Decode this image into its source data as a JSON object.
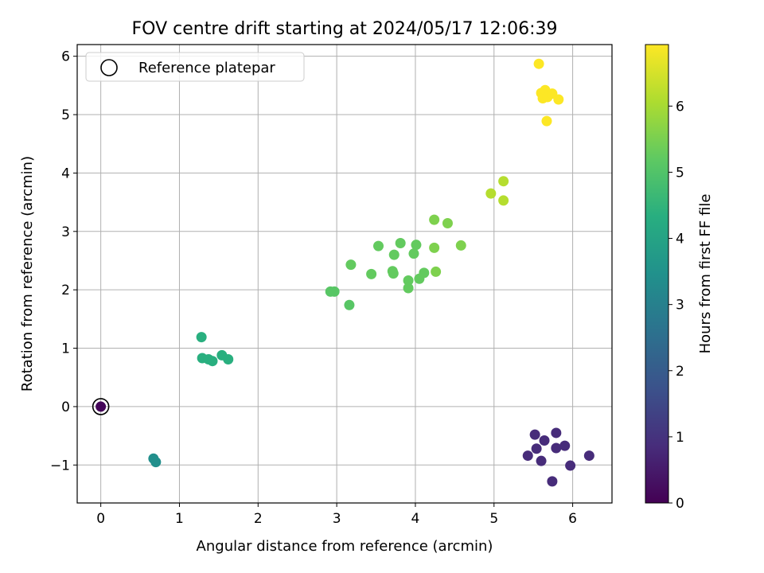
{
  "chart_data": {
    "type": "scatter",
    "title": "FOV centre drift starting at 2024/05/17 12:06:39",
    "xlabel": "Angular distance from reference (arcmin)",
    "ylabel": "Rotation from reference (arcmin)",
    "colorbar_label": "Hours from first FF file",
    "xlim": [
      -0.3,
      6.5
    ],
    "ylim": [
      -1.65,
      6.2
    ],
    "clim": [
      0,
      6.93
    ],
    "xticks": [
      0,
      1,
      2,
      3,
      4,
      5,
      6
    ],
    "xtick_labels": [
      "0",
      "1",
      "2",
      "3",
      "4",
      "5",
      "6"
    ],
    "yticks": [
      -1,
      0,
      1,
      2,
      3,
      4,
      5,
      6
    ],
    "ytick_labels": [
      "−1",
      "0",
      "1",
      "2",
      "3",
      "4",
      "5",
      "6"
    ],
    "cbar_ticks": [
      0,
      1,
      2,
      3,
      4,
      5,
      6
    ],
    "cbar_tick_labels": [
      "0",
      "1",
      "2",
      "3",
      "4",
      "5",
      "6"
    ],
    "grid": true,
    "colormap": "viridis",
    "legend": {
      "position": "upper-left",
      "entries": [
        "Reference platepar"
      ]
    },
    "reference_point": {
      "x": 0,
      "y": 0
    },
    "points": [
      {
        "x": 0.0,
        "y": 0.0,
        "c": 0.1
      },
      {
        "x": 5.52,
        "y": -0.48,
        "c": 0.85
      },
      {
        "x": 5.64,
        "y": -0.58,
        "c": 0.85
      },
      {
        "x": 5.79,
        "y": -0.45,
        "c": 0.85
      },
      {
        "x": 5.43,
        "y": -0.84,
        "c": 0.85
      },
      {
        "x": 5.54,
        "y": -0.72,
        "c": 0.85
      },
      {
        "x": 5.6,
        "y": -0.93,
        "c": 0.85
      },
      {
        "x": 5.79,
        "y": -0.71,
        "c": 0.85
      },
      {
        "x": 5.9,
        "y": -0.67,
        "c": 0.85
      },
      {
        "x": 5.97,
        "y": -1.01,
        "c": 0.85
      },
      {
        "x": 6.21,
        "y": -0.84,
        "c": 0.85
      },
      {
        "x": 5.74,
        "y": -1.28,
        "c": 0.85
      },
      {
        "x": 0.67,
        "y": -0.89,
        "c": 3.4
      },
      {
        "x": 0.7,
        "y": -0.95,
        "c": 3.4
      },
      {
        "x": 1.28,
        "y": 1.19,
        "c": 4.35
      },
      {
        "x": 1.29,
        "y": 0.83,
        "c": 4.35
      },
      {
        "x": 1.37,
        "y": 0.81,
        "c": 4.35
      },
      {
        "x": 1.42,
        "y": 0.78,
        "c": 4.35
      },
      {
        "x": 1.54,
        "y": 0.88,
        "c": 4.35
      },
      {
        "x": 1.62,
        "y": 0.81,
        "c": 4.35
      },
      {
        "x": 2.92,
        "y": 1.97,
        "c": 5.1
      },
      {
        "x": 2.97,
        "y": 1.97,
        "c": 5.1
      },
      {
        "x": 3.16,
        "y": 1.74,
        "c": 5.1
      },
      {
        "x": 3.18,
        "y": 2.43,
        "c": 5.25
      },
      {
        "x": 3.44,
        "y": 2.27,
        "c": 5.25
      },
      {
        "x": 3.53,
        "y": 2.75,
        "c": 5.25
      },
      {
        "x": 3.71,
        "y": 2.32,
        "c": 5.25
      },
      {
        "x": 3.72,
        "y": 2.28,
        "c": 5.25
      },
      {
        "x": 3.73,
        "y": 2.6,
        "c": 5.25
      },
      {
        "x": 3.81,
        "y": 2.8,
        "c": 5.25
      },
      {
        "x": 3.91,
        "y": 2.16,
        "c": 5.25
      },
      {
        "x": 3.91,
        "y": 2.03,
        "c": 5.25
      },
      {
        "x": 3.98,
        "y": 2.62,
        "c": 5.25
      },
      {
        "x": 4.01,
        "y": 2.77,
        "c": 5.25
      },
      {
        "x": 4.05,
        "y": 2.19,
        "c": 5.25
      },
      {
        "x": 4.11,
        "y": 2.29,
        "c": 5.25
      },
      {
        "x": 4.24,
        "y": 2.72,
        "c": 5.55
      },
      {
        "x": 4.26,
        "y": 2.31,
        "c": 5.55
      },
      {
        "x": 4.24,
        "y": 3.2,
        "c": 5.55
      },
      {
        "x": 4.41,
        "y": 3.14,
        "c": 5.55
      },
      {
        "x": 4.58,
        "y": 2.76,
        "c": 5.55
      },
      {
        "x": 4.96,
        "y": 3.65,
        "c": 6.15
      },
      {
        "x": 5.12,
        "y": 3.86,
        "c": 6.15
      },
      {
        "x": 5.12,
        "y": 3.53,
        "c": 6.15
      },
      {
        "x": 5.57,
        "y": 5.87,
        "c": 6.92
      },
      {
        "x": 5.6,
        "y": 5.37,
        "c": 6.92
      },
      {
        "x": 5.62,
        "y": 5.28,
        "c": 6.92
      },
      {
        "x": 5.65,
        "y": 5.42,
        "c": 6.92
      },
      {
        "x": 5.68,
        "y": 5.3,
        "c": 6.92
      },
      {
        "x": 5.74,
        "y": 5.36,
        "c": 6.92
      },
      {
        "x": 5.82,
        "y": 5.26,
        "c": 6.92
      },
      {
        "x": 5.67,
        "y": 4.89,
        "c": 6.92
      }
    ]
  }
}
